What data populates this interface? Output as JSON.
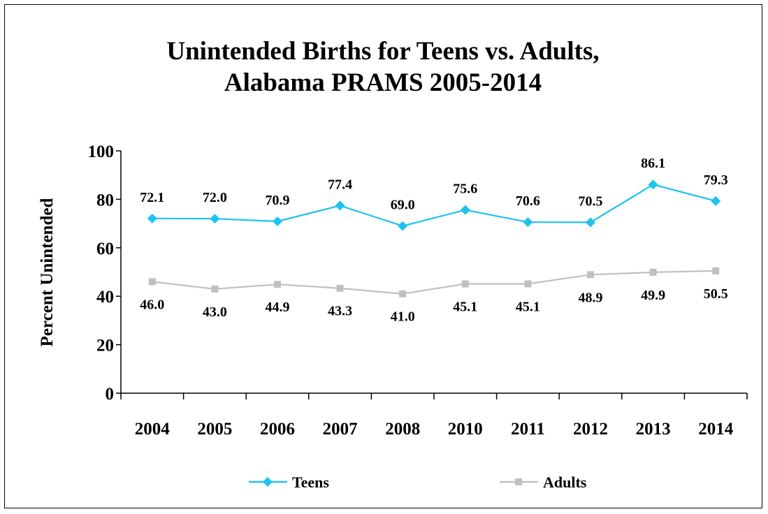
{
  "chart_data": {
    "type": "line",
    "title_lines": [
      "Unintended Births for Teens vs. Adults,",
      "Alabama PRAMS 2005-2014"
    ],
    "xlabel": "",
    "ylabel": "Percent Unintended",
    "categories": [
      "2004",
      "2005",
      "2006",
      "2007",
      "2008",
      "2010",
      "2011",
      "2012",
      "2013",
      "2014"
    ],
    "ylim": [
      0,
      100
    ],
    "yticks": [
      0,
      20,
      40,
      60,
      80,
      100
    ],
    "grid": false,
    "legend": "bottom",
    "series": [
      {
        "name": "Teens",
        "color": "#1EC3F0",
        "marker": "diamond",
        "values": [
          72.1,
          72.0,
          70.9,
          77.4,
          69.0,
          75.6,
          70.6,
          70.5,
          86.1,
          79.3
        ],
        "labels": [
          "72.1",
          "72.0",
          "70.9",
          "77.4",
          "69.0",
          "75.6",
          "70.6",
          "70.5",
          "86.1",
          "79.3"
        ]
      },
      {
        "name": "Adults",
        "color": "#C0C0C0",
        "marker": "square",
        "values": [
          46.0,
          43.0,
          44.9,
          43.3,
          41.0,
          45.1,
          45.1,
          48.9,
          49.9,
          50.5
        ],
        "labels": [
          "46.0",
          "43.0",
          "44.9",
          "43.3",
          "41.0",
          "45.1",
          "45.1",
          "48.9",
          "49.9",
          "50.5"
        ]
      }
    ]
  }
}
